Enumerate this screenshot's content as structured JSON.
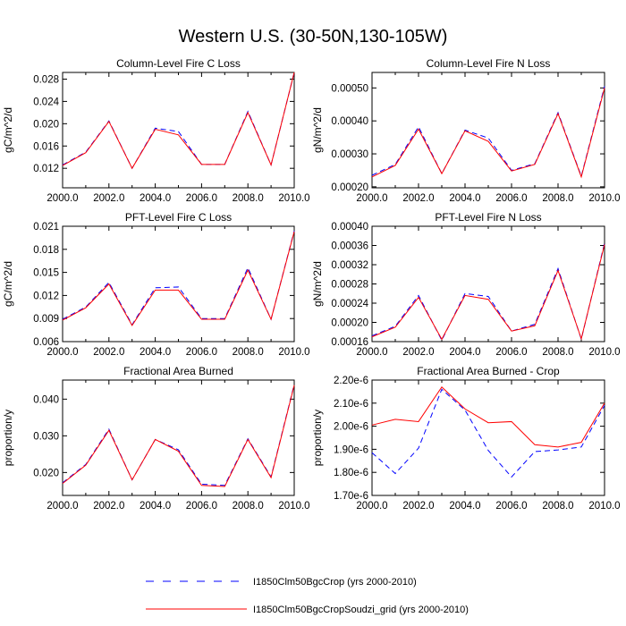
{
  "figure": {
    "title": "Western U.S. (30-50N,130-105W)"
  },
  "legend": {
    "entries": [
      {
        "label": "I1850Clm50BgcCrop (yrs 2000-2010)",
        "color": "#0000ff",
        "style": "dashed"
      },
      {
        "label": "I1850Clm50BgcCropSoudzi_grid (yrs 2000-2010)",
        "color": "#ff0000",
        "style": "solid"
      }
    ]
  },
  "chart_data": [
    {
      "type": "line",
      "title": "Column-Level Fire C Loss",
      "xlabel": "",
      "ylabel": "gC/m^2/d",
      "x": [
        2000,
        2001,
        2002,
        2003,
        2004,
        2005,
        2006,
        2007,
        2008,
        2009,
        2010
      ],
      "xlim": [
        2000,
        2010
      ],
      "ylim": [
        0.0085,
        0.0292
      ],
      "xticks": [
        "2000.0",
        "2002.0",
        "2004.0",
        "2006.0",
        "2008.0",
        "2010.0"
      ],
      "yticks": [
        {
          "value": 0.012,
          "label": "0.012"
        },
        {
          "value": 0.016,
          "label": "0.016"
        },
        {
          "value": 0.02,
          "label": "0.020"
        },
        {
          "value": 0.024,
          "label": "0.024"
        },
        {
          "value": 0.028,
          "label": "0.028"
        }
      ],
      "series": [
        {
          "name": "I1850Clm50BgcCrop (yrs 2000-2010)",
          "color": "#0000ff",
          "dash": true,
          "values": [
            0.0126,
            0.0149,
            0.0205,
            0.012,
            0.0192,
            0.0186,
            0.0127,
            0.0127,
            0.0222,
            0.0126,
            0.0292
          ]
        },
        {
          "name": "I1850Clm50BgcCropSoudzi_grid (yrs 2000-2010)",
          "color": "#ff0000",
          "dash": false,
          "values": [
            0.0125,
            0.0148,
            0.0204,
            0.012,
            0.019,
            0.018,
            0.0127,
            0.0127,
            0.022,
            0.0126,
            0.0292
          ]
        }
      ]
    },
    {
      "type": "line",
      "title": "Column-Level Fire N Loss",
      "xlabel": "",
      "ylabel": "gN/m^2/d",
      "x": [
        2000,
        2001,
        2002,
        2003,
        2004,
        2005,
        2006,
        2007,
        2008,
        2009,
        2010
      ],
      "xlim": [
        2000,
        2010
      ],
      "ylim": [
        0.000197,
        0.000547
      ],
      "xticks": [
        "2000.0",
        "2002.0",
        "2004.0",
        "2006.0",
        "2008.0",
        "2010.0"
      ],
      "yticks": [
        {
          "value": 0.0002,
          "label": "0.00020"
        },
        {
          "value": 0.0003,
          "label": "0.00030"
        },
        {
          "value": 0.0004,
          "label": "0.00040"
        },
        {
          "value": 0.0005,
          "label": "0.00050"
        }
      ],
      "series": [
        {
          "name": "I1850Clm50BgcCrop (yrs 2000-2010)",
          "color": "#0000ff",
          "dash": true,
          "values": [
            0.000235,
            0.000268,
            0.000382,
            0.00024,
            0.000372,
            0.000348,
            0.00025,
            0.00027,
            0.000425,
            0.000232,
            0.000505
          ]
        },
        {
          "name": "I1850Clm50BgcCropSoudzi_grid (yrs 2000-2010)",
          "color": "#ff0000",
          "dash": false,
          "values": [
            0.00023,
            0.000265,
            0.000375,
            0.00024,
            0.00037,
            0.000338,
            0.000248,
            0.000268,
            0.000422,
            0.00023,
            0.0005
          ]
        }
      ]
    },
    {
      "type": "line",
      "title": "PFT-Level Fire C Loss",
      "xlabel": "",
      "ylabel": "gC/m^2/d",
      "x": [
        2000,
        2001,
        2002,
        2003,
        2004,
        2005,
        2006,
        2007,
        2008,
        2009,
        2010
      ],
      "xlim": [
        2000,
        2010
      ],
      "ylim": [
        0.006,
        0.021
      ],
      "xticks": [
        "2000.0",
        "2002.0",
        "2004.0",
        "2006.0",
        "2008.0",
        "2010.0"
      ],
      "yticks": [
        {
          "value": 0.006,
          "label": "0.006"
        },
        {
          "value": 0.009,
          "label": "0.009"
        },
        {
          "value": 0.012,
          "label": "0.012"
        },
        {
          "value": 0.015,
          "label": "0.015"
        },
        {
          "value": 0.018,
          "label": "0.018"
        },
        {
          "value": 0.021,
          "label": "0.021"
        }
      ],
      "series": [
        {
          "name": "I1850Clm50BgcCrop (yrs 2000-2010)",
          "color": "#0000ff",
          "dash": true,
          "values": [
            0.0089,
            0.0105,
            0.0137,
            0.0082,
            0.013,
            0.0131,
            0.009,
            0.009,
            0.0156,
            0.0089,
            0.0204
          ]
        },
        {
          "name": "I1850Clm50BgcCropSoudzi_grid (yrs 2000-2010)",
          "color": "#ff0000",
          "dash": false,
          "values": [
            0.0088,
            0.0104,
            0.0135,
            0.0081,
            0.0127,
            0.0127,
            0.0089,
            0.0089,
            0.0153,
            0.0089,
            0.0203
          ]
        }
      ]
    },
    {
      "type": "line",
      "title": "PFT-Level Fire N Loss",
      "xlabel": "",
      "ylabel": "gN/m^2/d",
      "x": [
        2000,
        2001,
        2002,
        2003,
        2004,
        2005,
        2006,
        2007,
        2008,
        2009,
        2010
      ],
      "xlim": [
        2000,
        2010
      ],
      "ylim": [
        0.00016,
        0.0004
      ],
      "xticks": [
        "2000.0",
        "2002.0",
        "2004.0",
        "2006.0",
        "2008.0",
        "2010.0"
      ],
      "yticks": [
        {
          "value": 0.00016,
          "label": "0.00016"
        },
        {
          "value": 0.0002,
          "label": "0.00020"
        },
        {
          "value": 0.00024,
          "label": "0.00024"
        },
        {
          "value": 0.00028,
          "label": "0.00028"
        },
        {
          "value": 0.00032,
          "label": "0.00032"
        },
        {
          "value": 0.00036,
          "label": "0.00036"
        },
        {
          "value": 0.0004,
          "label": "0.00040"
        }
      ],
      "series": [
        {
          "name": "I1850Clm50BgcCrop (yrs 2000-2010)",
          "color": "#0000ff",
          "dash": true,
          "values": [
            0.000172,
            0.000192,
            0.000256,
            0.000163,
            0.00026,
            0.000254,
            0.000182,
            0.000196,
            0.000312,
            0.000165,
            0.000365
          ]
        },
        {
          "name": "I1850Clm50BgcCropSoudzi_grid (yrs 2000-2010)",
          "color": "#ff0000",
          "dash": false,
          "values": [
            0.00017,
            0.00019,
            0.000252,
            0.000165,
            0.000256,
            0.000248,
            0.000182,
            0.000193,
            0.000308,
            0.000166,
            0.000362
          ]
        }
      ]
    },
    {
      "type": "line",
      "title": "Fractional Area Burned",
      "xlabel": "",
      "ylabel": "proportion/y",
      "x": [
        2000,
        2001,
        2002,
        2003,
        2004,
        2005,
        2006,
        2007,
        2008,
        2009,
        2010
      ],
      "xlim": [
        2000,
        2010
      ],
      "ylim": [
        0.01375,
        0.0452
      ],
      "xticks": [
        "2000.0",
        "2002.0",
        "2004.0",
        "2006.0",
        "2008.0",
        "2010.0"
      ],
      "yticks": [
        {
          "value": 0.02,
          "label": "0.020"
        },
        {
          "value": 0.03,
          "label": "0.030"
        },
        {
          "value": 0.04,
          "label": "0.040"
        }
      ],
      "series": [
        {
          "name": "I1850Clm50BgcCrop (yrs 2000-2010)",
          "color": "#0000ff",
          "dash": true,
          "values": [
            0.0172,
            0.0222,
            0.0318,
            0.018,
            0.029,
            0.0262,
            0.0168,
            0.0165,
            0.0292,
            0.0188,
            0.044
          ]
        },
        {
          "name": "I1850Clm50BgcCropSoudzi_grid (yrs 2000-2010)",
          "color": "#ff0000",
          "dash": false,
          "values": [
            0.017,
            0.022,
            0.0315,
            0.018,
            0.029,
            0.0258,
            0.0165,
            0.0162,
            0.029,
            0.0186,
            0.0438
          ]
        }
      ]
    },
    {
      "type": "line",
      "title": "Fractional Area Burned - Crop",
      "xlabel": "",
      "ylabel": "proportion/y",
      "x": [
        2000,
        2001,
        2002,
        2003,
        2004,
        2005,
        2006,
        2007,
        2008,
        2009,
        2010
      ],
      "xlim": [
        2000,
        2010
      ],
      "ylim": [
        1.7e-06,
        2.2e-06
      ],
      "xticks": [
        "2000.0",
        "2002.0",
        "2004.0",
        "2006.0",
        "2008.0",
        "2010.0"
      ],
      "yticks": [
        {
          "value": 1.7e-06,
          "label": "1.70e-6"
        },
        {
          "value": 1.8e-06,
          "label": "1.80e-6"
        },
        {
          "value": 1.9e-06,
          "label": "1.90e-6"
        },
        {
          "value": 2e-06,
          "label": "2.00e-6"
        },
        {
          "value": 2.1e-06,
          "label": "2.10e-6"
        },
        {
          "value": 2.2e-06,
          "label": "2.20e-6"
        }
      ],
      "series": [
        {
          "name": "I1850Clm50BgcCrop (yrs 2000-2010)",
          "color": "#0000ff",
          "dash": true,
          "values": [
            1.885e-06,
            1.795e-06,
            1.905e-06,
            2.16e-06,
            2.07e-06,
            1.895e-06,
            1.78e-06,
            1.89e-06,
            1.897e-06,
            1.91e-06,
            2.09e-06
          ]
        },
        {
          "name": "I1850Clm50BgcCropSoudzi_grid (yrs 2000-2010)",
          "color": "#ff0000",
          "dash": false,
          "values": [
            2.005e-06,
            2.03e-06,
            2.02e-06,
            2.17e-06,
            2.075e-06,
            2.015e-06,
            2.02e-06,
            1.92e-06,
            1.91e-06,
            1.93e-06,
            2.1e-06
          ]
        }
      ]
    }
  ]
}
